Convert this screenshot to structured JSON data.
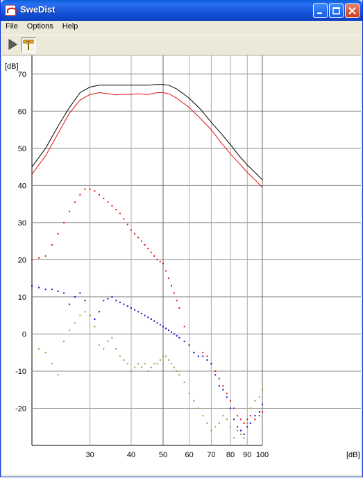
{
  "window": {
    "title": "SweDist"
  },
  "menu": [
    "File",
    "Options",
    "Help"
  ],
  "toolbar": {
    "play_icon": "play-icon",
    "marker_icon": "marker-icon"
  },
  "chart_data": {
    "type": "line",
    "xlabel": "[dB]",
    "ylabel": "[dB]",
    "xscale": "log",
    "xlim": [
      20,
      100
    ],
    "ylim": [
      -30,
      75
    ],
    "grid": true,
    "x_ticks": [
      30,
      40,
      50,
      60,
      70,
      80,
      90,
      100
    ],
    "y_ticks": [
      -20,
      -10,
      0,
      10,
      20,
      30,
      40,
      50,
      60,
      70
    ],
    "colors": {
      "black": "#000000",
      "red": "#e01010",
      "blue": "#0a0acf",
      "olive": "#9a9a3a"
    },
    "series": [
      {
        "style": "line",
        "color": "#000000",
        "x": [
          20,
          22,
          24,
          26,
          28,
          30,
          32,
          34,
          36,
          38,
          40,
          42,
          45,
          48,
          50,
          52,
          55,
          60,
          65,
          70,
          75,
          80,
          85,
          90,
          95,
          100
        ],
        "y": [
          45,
          50,
          56,
          61,
          65,
          66.5,
          67,
          67,
          67,
          67,
          67,
          67,
          67,
          67.2,
          67.2,
          67,
          66,
          63.5,
          60.5,
          57,
          54,
          51,
          48,
          45.5,
          43.5,
          41.5
        ]
      },
      {
        "style": "line",
        "color": "#e01010",
        "x": [
          20,
          22,
          24,
          26,
          28,
          30,
          32,
          34,
          36,
          38,
          40,
          42,
          45,
          48,
          50,
          52,
          55,
          60,
          65,
          70,
          75,
          80,
          85,
          90,
          95,
          100
        ],
        "y": [
          43,
          48,
          54,
          59.5,
          63,
          64.5,
          65,
          64.7,
          64.4,
          64.6,
          64.5,
          64.7,
          64.5,
          65,
          65,
          64.7,
          63.5,
          61,
          58,
          55,
          51.5,
          48.5,
          46,
          43.5,
          41.5,
          39.5
        ]
      },
      {
        "style": "dots",
        "color": "#e01010",
        "x": [
          20,
          21,
          22,
          23,
          24,
          25,
          26,
          27,
          28,
          29,
          30,
          31,
          32,
          33,
          34,
          35,
          36,
          37,
          38,
          39,
          40,
          41,
          42,
          43,
          44,
          45,
          46,
          47,
          48,
          49,
          50,
          51,
          52,
          53,
          54,
          55,
          56,
          58,
          60,
          62,
          64,
          66,
          68,
          70,
          72,
          74,
          76,
          78,
          80,
          82,
          84,
          86,
          88,
          90,
          92,
          95,
          98,
          100
        ],
        "y": [
          20,
          20.5,
          21,
          24,
          27,
          30,
          33,
          35.5,
          37.5,
          39,
          39,
          38.5,
          37.5,
          36.5,
          35.5,
          34.5,
          33.5,
          32.5,
          31,
          29.5,
          28,
          27,
          26,
          25,
          24,
          23,
          22,
          21,
          20,
          19.5,
          19,
          17,
          15,
          13,
          11,
          9,
          7,
          2,
          -3,
          -5,
          -6,
          -5,
          -6,
          -8,
          -10,
          -12,
          -14,
          -16,
          -18,
          -20,
          -22,
          -23,
          -24,
          -23,
          -22,
          -23,
          -22,
          -21
        ]
      },
      {
        "style": "dots",
        "color": "#0a0acf",
        "x": [
          20,
          21,
          22,
          23,
          24,
          25,
          26,
          27,
          28,
          29,
          30,
          31,
          32,
          33,
          34,
          35,
          36,
          37,
          38,
          39,
          40,
          41,
          42,
          43,
          44,
          45,
          46,
          47,
          48,
          49,
          50,
          51,
          52,
          53,
          54,
          55,
          56,
          58,
          60,
          62,
          64,
          66,
          68,
          70,
          72,
          74,
          76,
          78,
          80,
          82,
          84,
          86,
          88,
          90,
          92,
          95,
          98,
          100
        ],
        "y": [
          13,
          12.5,
          12,
          12,
          11.5,
          11,
          8,
          10,
          11,
          9,
          5,
          4,
          6,
          9,
          9.5,
          10,
          9,
          8.5,
          8,
          7.5,
          7,
          6.5,
          6,
          5.5,
          5,
          4.5,
          4,
          3.5,
          3,
          2.5,
          2,
          1.5,
          1,
          0.5,
          0,
          -0.5,
          -1,
          -2,
          -3,
          -5,
          -6,
          -6,
          -7,
          -8,
          -11,
          -14,
          -15,
          -17,
          -20,
          -23,
          -25,
          -26,
          -27,
          -25,
          -24,
          -22,
          -21,
          -19
        ]
      },
      {
        "style": "dots",
        "color": "#9a9a3a",
        "x": [
          20,
          21,
          22,
          23,
          24,
          25,
          26,
          27,
          28,
          29,
          30,
          31,
          32,
          33,
          34,
          35,
          36,
          37,
          38,
          39,
          40,
          41,
          42,
          43,
          44,
          45,
          46,
          47,
          48,
          49,
          50,
          51,
          52,
          53,
          54,
          55,
          56,
          58,
          60,
          62,
          64,
          66,
          68,
          70,
          72,
          74,
          76,
          78,
          80,
          82,
          84,
          86,
          88,
          90,
          92,
          95,
          98,
          100
        ],
        "y": [
          -6,
          -4,
          -5,
          -8,
          -11,
          -2,
          1,
          3,
          5,
          6,
          5,
          2,
          -3,
          -4,
          -2,
          -1,
          -4,
          -6,
          -7,
          -8,
          -10,
          -9,
          -8,
          -9,
          -8,
          -10,
          -9,
          -8,
          -8,
          -7,
          -6,
          -6,
          -7,
          -8,
          -9,
          -10,
          -11,
          -13,
          -16,
          -18,
          -20,
          -22,
          -24,
          -26,
          -25,
          -24,
          -22,
          -23,
          -25,
          -28,
          -26,
          -27,
          -28,
          -24,
          -20,
          -18,
          -17,
          -15
        ]
      }
    ]
  }
}
